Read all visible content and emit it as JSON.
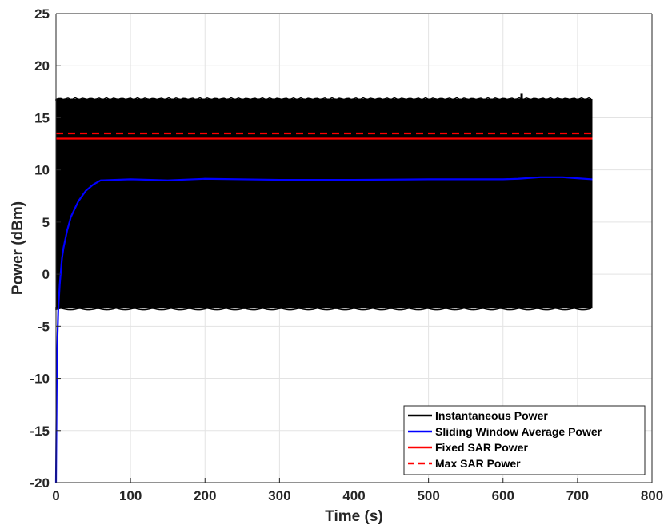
{
  "chart_data": {
    "type": "line",
    "title": "",
    "xlabel": "Time (s)",
    "ylabel": "Power (dBm)",
    "xlim": [
      0,
      800
    ],
    "ylim": [
      -20,
      25
    ],
    "xticks": [
      0,
      100,
      200,
      300,
      400,
      500,
      600,
      700,
      800
    ],
    "yticks": [
      -20,
      -15,
      -10,
      -5,
      0,
      5,
      10,
      15,
      20,
      25
    ],
    "grid": true,
    "legend_position": "bottom-right",
    "series": [
      {
        "name": "Instantaneous Power",
        "color": "#000000",
        "style": "band",
        "x_range": [
          0,
          720
        ],
        "lower": -3.3,
        "upper": 16.8,
        "spikes": [
          {
            "x": 625,
            "y": 17.3
          }
        ]
      },
      {
        "name": "Sliding Window Average Power",
        "color": "#0000ff",
        "style": "solid",
        "points": [
          [
            0,
            -20
          ],
          [
            1,
            -10
          ],
          [
            2,
            -6
          ],
          [
            3,
            -3.5
          ],
          [
            5,
            -1
          ],
          [
            8,
            1.5
          ],
          [
            10,
            2.5
          ],
          [
            15,
            4.2
          ],
          [
            20,
            5.5
          ],
          [
            30,
            7
          ],
          [
            40,
            8
          ],
          [
            50,
            8.6
          ],
          [
            60,
            9.0
          ],
          [
            100,
            9.1
          ],
          [
            150,
            9.0
          ],
          [
            200,
            9.15
          ],
          [
            300,
            9.05
          ],
          [
            400,
            9.05
          ],
          [
            500,
            9.1
          ],
          [
            600,
            9.1
          ],
          [
            620,
            9.15
          ],
          [
            650,
            9.3
          ],
          [
            680,
            9.3
          ],
          [
            700,
            9.2
          ],
          [
            720,
            9.1
          ]
        ]
      },
      {
        "name": "Fixed SAR Power",
        "color": "#ff0000",
        "style": "solid",
        "y": 13.0,
        "x_range": [
          0,
          720
        ]
      },
      {
        "name": "Max SAR Power",
        "color": "#ff0000",
        "style": "dashed",
        "y": 13.5,
        "x_range": [
          0,
          720
        ]
      }
    ]
  }
}
